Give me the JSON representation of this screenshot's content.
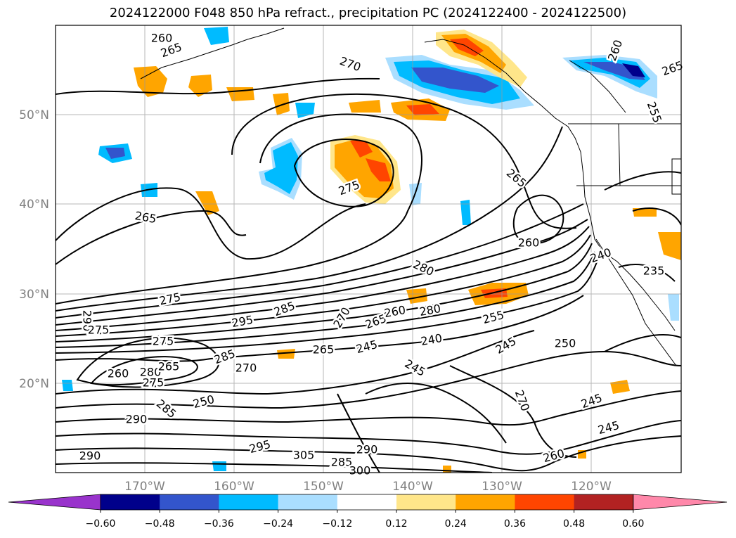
{
  "title": "2024122000 F048 850 hPa refract., precipitation PC (2024122400 - 2024122500)",
  "axes": {
    "lat_labels": [
      "50°N",
      "40°N",
      "30°N",
      "20°N"
    ],
    "lon_labels": [
      "170°W",
      "160°W",
      "150°W",
      "140°W",
      "130°W",
      "120°W"
    ]
  },
  "contour_labels": [
    "260",
    "265",
    "270",
    "260",
    "265",
    "255",
    "265",
    "275",
    "265",
    "260",
    "240",
    "280",
    "235",
    "275",
    "295",
    "285",
    "270",
    "265",
    "260",
    "280",
    "255",
    "290",
    "275",
    "275",
    "285",
    "265",
    "250",
    "245",
    "240",
    "245",
    "245",
    "250",
    "245",
    "260",
    "280",
    "275",
    "265",
    "270",
    "285",
    "290",
    "290",
    "295",
    "305",
    "285",
    "300",
    "290",
    "260",
    "245",
    "270"
  ],
  "colorbar": {
    "colors": [
      "#9933cc",
      "#00008b",
      "#3355cc",
      "#00bbff",
      "#aadeff",
      "#ffffff",
      "#ffe68a",
      "#ffa500",
      "#ff4500",
      "#b22222",
      "#ff88aa"
    ],
    "tick_labels": [
      "−0.60",
      "−0.48",
      "−0.36",
      "−0.24",
      "−0.12",
      "0.12",
      "0.24",
      "0.36",
      "0.48",
      "0.60"
    ]
  }
}
